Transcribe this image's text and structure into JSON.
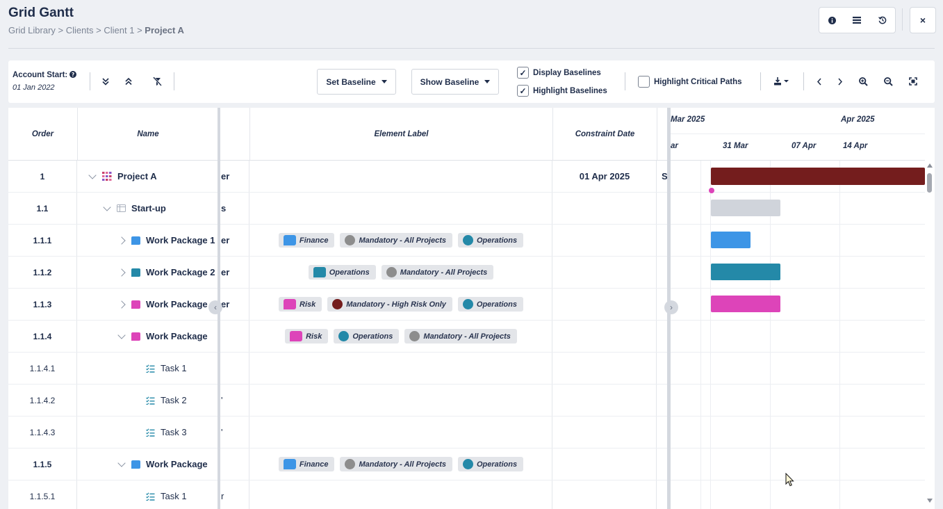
{
  "header": {
    "title": "Grid Gantt",
    "breadcrumb": [
      "Grid Library",
      "Clients",
      "Client 1",
      "Project A"
    ],
    "breadcrumb_sep": ">",
    "icons": [
      "info-icon",
      "list-icon",
      "history-icon"
    ],
    "close_label": "×"
  },
  "toolbar": {
    "account_start_label": "Account Start:",
    "account_start_date": "01 Jan 2022",
    "set_baseline": "Set Baseline",
    "show_baseline": "Show Baseline",
    "display_baselines": {
      "label": "Display Baselines",
      "checked": true
    },
    "highlight_baselines": {
      "label": "Highlight Baselines",
      "checked": true
    },
    "highlight_critical_paths": {
      "label": "Highlight Critical Paths",
      "checked": false
    }
  },
  "grid": {
    "columns": {
      "order": "Order",
      "name": "Name",
      "element_label": "Element Label",
      "constraint_date": "Constraint Date"
    },
    "rows": [
      {
        "order": "1",
        "bold": true,
        "level": 0,
        "expander": "down",
        "icon": "project",
        "name": "Project A",
        "clip": "er",
        "labels": [],
        "constraint_date": "01 Apr 2025",
        "gclip": "S"
      },
      {
        "order": "1.1",
        "bold": true,
        "level": 1,
        "expander": "down",
        "icon": "phase",
        "name": "Start-up",
        "clip": "s",
        "labels": [],
        "constraint_date": "",
        "gclip": ""
      },
      {
        "order": "1.1.1",
        "bold": true,
        "level": 2,
        "expander": "right",
        "icon": "wp-blue",
        "name": "Work Package 1",
        "clip": "er",
        "labels": [
          {
            "text": "Finance",
            "shape": "sq",
            "color": "#3d95e6"
          },
          {
            "text": "Mandatory - All Projects",
            "shape": "dot",
            "color": "#8d8d8d"
          },
          {
            "text": "Operations",
            "shape": "dot",
            "color": "#2489a8"
          }
        ],
        "constraint_date": "",
        "gclip": ""
      },
      {
        "order": "1.1.2",
        "bold": true,
        "level": 2,
        "expander": "right",
        "icon": "wp-teal",
        "name": "Work Package 2",
        "clip": "er",
        "labels": [
          {
            "text": "Operations",
            "shape": "sq",
            "color": "#2489a8"
          },
          {
            "text": "Mandatory - All Projects",
            "shape": "dot",
            "color": "#8d8d8d"
          }
        ],
        "constraint_date": "",
        "gclip": ""
      },
      {
        "order": "1.1.3",
        "bold": true,
        "level": 2,
        "expander": "right",
        "icon": "wp-pink",
        "name": "Work Package",
        "clip": "er",
        "labels": [
          {
            "text": "Risk",
            "shape": "sq",
            "color": "#dd44b9"
          },
          {
            "text": "Mandatory - High Risk Only",
            "shape": "dot",
            "color": "#741d1d"
          },
          {
            "text": "Operations",
            "shape": "dot",
            "color": "#2489a8"
          }
        ],
        "constraint_date": "",
        "gclip": ""
      },
      {
        "order": "1.1.4",
        "bold": true,
        "level": 2,
        "expander": "down",
        "icon": "wp-pink",
        "name": "Work Package",
        "clip": "",
        "labels": [
          {
            "text": "Risk",
            "shape": "sq",
            "color": "#dd44b9"
          },
          {
            "text": "Operations",
            "shape": "dot",
            "color": "#2489a8"
          },
          {
            "text": "Mandatory - All Projects",
            "shape": "dot",
            "color": "#8d8d8d"
          }
        ],
        "constraint_date": "",
        "gclip": ""
      },
      {
        "order": "1.1.4.1",
        "bold": false,
        "level": 3,
        "expander": "",
        "icon": "task",
        "name": "Task 1",
        "clip": "",
        "labels": [],
        "constraint_date": "",
        "gclip": ""
      },
      {
        "order": "1.1.4.2",
        "bold": false,
        "level": 3,
        "expander": "",
        "icon": "task",
        "name": "Task 2",
        "clip": "'",
        "labels": [],
        "constraint_date": "",
        "gclip": ""
      },
      {
        "order": "1.1.4.3",
        "bold": false,
        "level": 3,
        "expander": "",
        "icon": "task",
        "name": "Task 3",
        "clip": "'",
        "labels": [],
        "constraint_date": "",
        "gclip": ""
      },
      {
        "order": "1.1.5",
        "bold": true,
        "level": 2,
        "expander": "down",
        "icon": "wp-blue",
        "name": "Work Package",
        "clip": "",
        "labels": [
          {
            "text": "Finance",
            "shape": "sq",
            "color": "#3d95e6"
          },
          {
            "text": "Mandatory - All Projects",
            "shape": "dot",
            "color": "#8d8d8d"
          },
          {
            "text": "Operations",
            "shape": "dot",
            "color": "#2489a8"
          }
        ],
        "constraint_date": "",
        "gclip": ""
      },
      {
        "order": "1.1.5.1",
        "bold": false,
        "level": 3,
        "expander": "",
        "icon": "task",
        "name": "Task 1",
        "clip": "r",
        "labels": [],
        "constraint_date": "",
        "gclip": ""
      }
    ]
  },
  "gantt": {
    "months": [
      {
        "label": "Mar 2025",
        "clipped": true
      },
      {
        "label": "Apr 2025",
        "clipped": false
      }
    ],
    "weeks": [
      "ar",
      "31 Mar",
      "07 Apr",
      "14 Apr"
    ],
    "bars": [
      {
        "row": 0,
        "color": "#741d1d",
        "start": 0,
        "span": "open"
      },
      {
        "row": 1,
        "color": "#d0d4db",
        "start": 0,
        "span": 1.0
      },
      {
        "row": 2,
        "color": "#3d95e6",
        "start": 0,
        "span": 0.57
      },
      {
        "row": 3,
        "color": "#2489a8",
        "start": 0,
        "span": 1.0
      },
      {
        "row": 4,
        "color": "#dd44b9",
        "start": 0,
        "span": 1.0
      }
    ],
    "milestone_color": "#dd44b9"
  },
  "colors": {
    "accent": "#1f2d4a",
    "background": "#eef0f4"
  }
}
